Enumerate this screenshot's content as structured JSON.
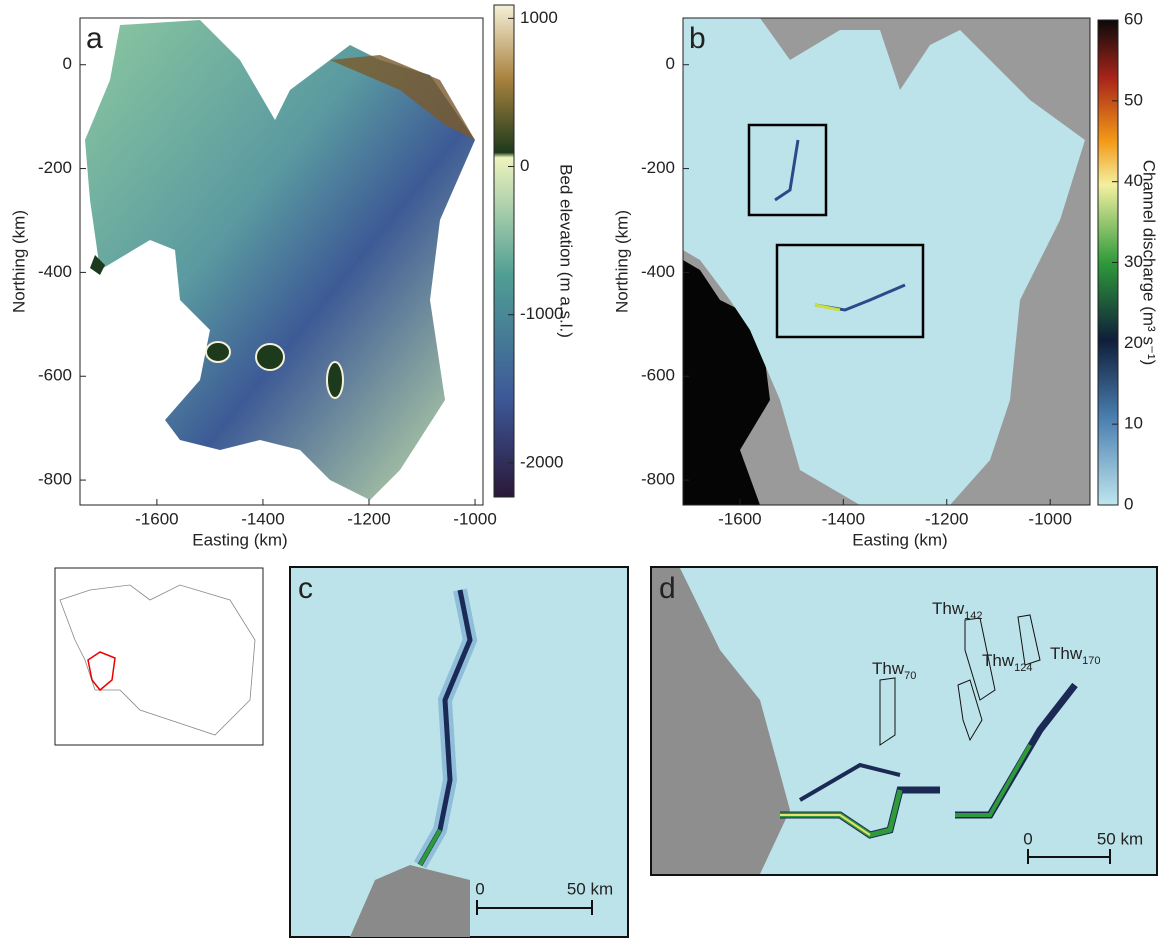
{
  "panels": [
    {
      "label": "a",
      "xlabel": "Easting (km)",
      "ylabel": "Northing (km)",
      "xlim": [
        -1745,
        -985
      ],
      "ylim": [
        -848,
        90
      ],
      "xticks": [
        -1600,
        -1400,
        -1200,
        -1000
      ],
      "yticks": [
        0,
        -200,
        -400,
        -600,
        -800
      ],
      "colorbar": {
        "label": "Bed elevation (m a.s.l.)",
        "lim": [
          -2230,
          1090
        ],
        "ticks": [
          1000,
          0,
          -1000,
          -2000
        ]
      }
    },
    {
      "label": "b",
      "xlabel": "Easting (km)",
      "ylabel": "Northing (km)",
      "xlim": [
        -1710,
        -923
      ],
      "ylim": [
        -848,
        90
      ],
      "xticks": [
        -1600,
        -1400,
        -1200,
        -1000
      ],
      "yticks": [
        0,
        -200,
        -400,
        -600,
        -800
      ],
      "colorbar": {
        "label": "Channel discharge (m³ s⁻¹)",
        "lim": [
          0,
          60
        ],
        "ticks": [
          0,
          10,
          20,
          30,
          40,
          50,
          60
        ]
      }
    }
  ],
  "insets": [
    {
      "label": "c",
      "scale_start": "0",
      "scale_end": "50 km"
    },
    {
      "label": "d",
      "scale_start": "0",
      "scale_end": "50 km",
      "outlines": [
        {
          "name": "Thw",
          "subscript": "142"
        },
        {
          "name": "Thw",
          "subscript": "170"
        },
        {
          "name": "Thw",
          "subscript": "124"
        },
        {
          "name": "Thw",
          "subscript": "70"
        }
      ]
    }
  ]
}
